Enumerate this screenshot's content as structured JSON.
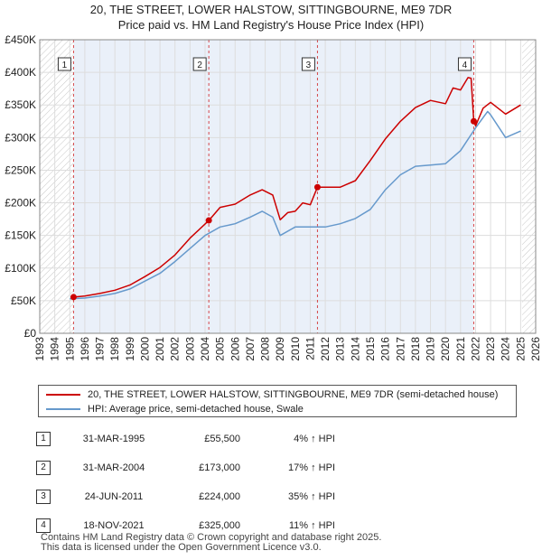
{
  "chart_data": {
    "type": "line",
    "title": "20, THE STREET, LOWER HALSTOW, SITTINGBOURNE, ME9 7DR",
    "subtitle": "Price paid vs. HM Land Registry's House Price Index (HPI)",
    "xlim": [
      1993,
      2026
    ],
    "ylim": [
      0,
      450000
    ],
    "x_ticks": [
      "1993",
      "1994",
      "1995",
      "1996",
      "1997",
      "1998",
      "1999",
      "2000",
      "2001",
      "2002",
      "2003",
      "2004",
      "2005",
      "2006",
      "2007",
      "2008",
      "2009",
      "2010",
      "2011",
      "2012",
      "2013",
      "2014",
      "2015",
      "2016",
      "2017",
      "2018",
      "2019",
      "2020",
      "2021",
      "2022",
      "2023",
      "2024",
      "2025",
      "2026"
    ],
    "y_ticks": [
      {
        "value": 0,
        "label": "£0"
      },
      {
        "value": 50000,
        "label": "£50K"
      },
      {
        "value": 100000,
        "label": "£100K"
      },
      {
        "value": 150000,
        "label": "£150K"
      },
      {
        "value": 200000,
        "label": "£200K"
      },
      {
        "value": 250000,
        "label": "£250K"
      },
      {
        "value": 300000,
        "label": "£300K"
      },
      {
        "value": 350000,
        "label": "£350K"
      },
      {
        "value": 400000,
        "label": "£400K"
      },
      {
        "value": 450000,
        "label": "£450K"
      }
    ],
    "shaded_periods": [
      [
        1993,
        1995.25
      ],
      [
        2025.1,
        2026
      ]
    ],
    "series": [
      {
        "name": "20, THE STREET, LOWER HALSTOW, SITTINGBOURNE, ME9 7DR (semi-detached house)",
        "color": "#cc0000",
        "x": [
          1995.25,
          1996,
          1997,
          1998,
          1999,
          2000,
          2001,
          2002,
          2003,
          2004.25,
          2005,
          2006,
          2007,
          2007.8,
          2008.5,
          2009,
          2009.5,
          2010,
          2010.5,
          2011,
          2011.48,
          2012,
          2013,
          2014,
          2015,
          2016,
          2017,
          2018,
          2019,
          2020,
          2020.5,
          2021,
          2021.5,
          2021.7,
          2021.88,
          2022,
          2022.5,
          2023,
          2023.5,
          2024,
          2024.5,
          2025
        ],
        "y": [
          55500,
          57000,
          61000,
          66000,
          74000,
          87000,
          101000,
          120000,
          146000,
          173000,
          193000,
          198000,
          212000,
          220000,
          212000,
          174000,
          185000,
          187000,
          200000,
          197000,
          224000,
          224000,
          224000,
          234000,
          265000,
          298000,
          325000,
          346000,
          357000,
          352000,
          376000,
          373000,
          392000,
          391000,
          325000,
          318000,
          345000,
          354000,
          345000,
          336000,
          343000,
          350000
        ]
      },
      {
        "name": "HPI: Average price, semi-detached house, Swale",
        "color": "#6699cc",
        "x": [
          1995,
          1996,
          1997,
          1998,
          1999,
          2000,
          2001,
          2002,
          2003,
          2004,
          2005,
          2006,
          2007,
          2007.8,
          2008.5,
          2009,
          2010,
          2011,
          2012,
          2013,
          2014,
          2015,
          2016,
          2017,
          2018,
          2019,
          2020,
          2021,
          2022,
          2022.8,
          2023,
          2024,
          2025
        ],
        "y": [
          53000,
          54000,
          57000,
          61000,
          68000,
          80000,
          92000,
          110000,
          130000,
          150000,
          163000,
          168000,
          178000,
          187000,
          178000,
          150000,
          163000,
          163000,
          163000,
          168000,
          176000,
          190000,
          220000,
          243000,
          256000,
          258000,
          260000,
          280000,
          315000,
          340000,
          335000,
          300000,
          310000
        ]
      }
    ],
    "transactions": [
      {
        "id": "1",
        "date": "31-MAR-1995",
        "price": "£55,500",
        "hpi": "4% ↑ HPI",
        "x": 1995.25,
        "y": 55500
      },
      {
        "id": "2",
        "date": "31-MAR-2004",
        "price": "£173,000",
        "hpi": "17% ↑ HPI",
        "x": 2004.25,
        "y": 173000
      },
      {
        "id": "3",
        "date": "24-JUN-2011",
        "price": "£224,000",
        "hpi": "35% ↑ HPI",
        "x": 2011.48,
        "y": 224000
      },
      {
        "id": "4",
        "date": "18-NOV-2021",
        "price": "£325,000",
        "hpi": "11% ↑ HPI",
        "x": 2021.88,
        "y": 325000
      }
    ]
  },
  "legend": {
    "property_label": "20, THE STREET, LOWER HALSTOW, SITTINGBOURNE, ME9 7DR (semi-detached house)",
    "hpi_label": "HPI: Average price, semi-detached house, Swale"
  },
  "footer": {
    "line1": "Contains HM Land Registry data © Crown copyright and database right 2025.",
    "line2": "This data is licensed under the Open Government Licence v3.0."
  }
}
